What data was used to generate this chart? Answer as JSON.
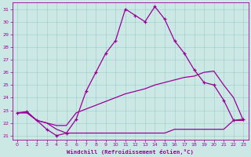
{
  "xlabel": "Windchill (Refroidissement éolien,°C)",
  "bg_color": "#cce8e4",
  "line_color": "#990099",
  "xlim": [
    -0.5,
    23.5
  ],
  "ylim": [
    20.7,
    31.5
  ],
  "yticks": [
    21,
    22,
    23,
    24,
    25,
    26,
    27,
    28,
    29,
    30,
    31
  ],
  "xticks": [
    0,
    1,
    2,
    3,
    4,
    5,
    6,
    7,
    8,
    9,
    10,
    11,
    12,
    13,
    14,
    15,
    16,
    17,
    18,
    19,
    20,
    21,
    22,
    23
  ],
  "series": [
    {
      "x": [
        0,
        1,
        2,
        3,
        4,
        5,
        6,
        7,
        8,
        9,
        10,
        11,
        12,
        13,
        14,
        15,
        16,
        17,
        18,
        19,
        20,
        21,
        22,
        23
      ],
      "y": [
        22.8,
        22.9,
        22.2,
        21.5,
        21.0,
        21.2,
        22.3,
        24.5,
        26.0,
        27.5,
        28.5,
        31.0,
        30.5,
        30.0,
        31.2,
        30.2,
        28.5,
        27.5,
        26.2,
        25.2,
        25.0,
        23.8,
        22.2,
        22.3
      ],
      "marker": "+",
      "lw": 0.9
    },
    {
      "x": [
        0,
        1,
        2,
        3,
        4,
        5,
        6,
        7,
        8,
        9,
        10,
        11,
        12,
        13,
        14,
        15,
        16,
        17,
        18,
        19,
        20,
        21,
        22,
        23
      ],
      "y": [
        22.8,
        22.8,
        22.2,
        22.0,
        21.8,
        21.8,
        22.8,
        23.1,
        23.4,
        23.7,
        24.0,
        24.3,
        24.5,
        24.7,
        25.0,
        25.2,
        25.4,
        25.6,
        25.7,
        26.0,
        26.1,
        25.0,
        24.0,
        22.2
      ],
      "marker": null,
      "lw": 0.9
    },
    {
      "x": [
        0,
        1,
        2,
        3,
        4,
        5,
        6,
        7,
        8,
        9,
        10,
        11,
        12,
        13,
        14,
        15,
        16,
        17,
        18,
        19,
        20,
        21,
        22,
        23
      ],
      "y": [
        22.8,
        22.8,
        22.2,
        22.0,
        21.5,
        21.2,
        21.2,
        21.2,
        21.2,
        21.2,
        21.2,
        21.2,
        21.2,
        21.2,
        21.2,
        21.2,
        21.5,
        21.5,
        21.5,
        21.5,
        21.5,
        21.5,
        22.2,
        22.2
      ],
      "marker": null,
      "lw": 0.9
    }
  ],
  "tick_labelsize": 4.5,
  "xlabel_fontsize": 5.2
}
